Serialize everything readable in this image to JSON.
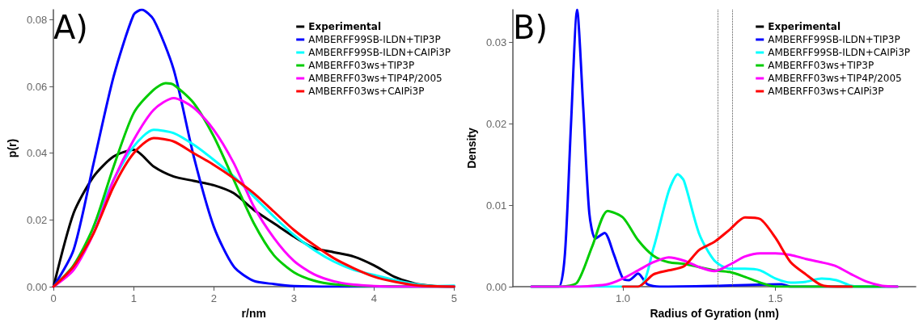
{
  "chart_data": [
    {
      "type": "line",
      "xlabel": "r/nm",
      "ylabel": "p(r)",
      "annotations": [
        "A)"
      ],
      "legend": "top right",
      "grid": false,
      "marker": "none",
      "line_style": "solid",
      "x": [
        0,
        0.25,
        0.5,
        0.75,
        1.0,
        1.25,
        1.5,
        1.75,
        2.0,
        2.25,
        2.5,
        2.75,
        3.0,
        3.25,
        3.5,
        3.75,
        4.0,
        4.25,
        4.5,
        4.75,
        5.0
      ],
      "xlim": [
        0,
        5
      ],
      "xticks": [
        0,
        1,
        2,
        3,
        4,
        5
      ],
      "ylim": [
        0,
        0.083
      ],
      "yticks": [
        {
          "value": 0,
          "label": "0.00"
        },
        {
          "value": 0.02,
          "label": "0.02"
        },
        {
          "value": 0.04,
          "label": "0.04"
        },
        {
          "value": 0.06,
          "label": "0.06"
        },
        {
          "value": 0.08,
          "label": "0.08"
        }
      ],
      "series": [
        {
          "name": "Experimental",
          "color": "#000000",
          "values": [
            0,
            0.022,
            0.033,
            0.039,
            0.041,
            0.036,
            0.033,
            0.0317,
            0.0304,
            0.028,
            0.023,
            0.019,
            0.015,
            0.0116,
            0.0103,
            0.009,
            0.0064,
            0.003,
            0.001,
            0.0002,
            0
          ]
        },
        {
          "name": "AMBERFF99SB-ILDN+TIP3P",
          "color": "#0000ff",
          "x": [
            0,
            0.25,
            0.5,
            0.75,
            1.0,
            1.1,
            1.25,
            1.5,
            1.75,
            2.0,
            2.25,
            2.5,
            2.75,
            3.0,
            3.5,
            4.0,
            5.0
          ],
          "values": [
            0,
            0.011,
            0.037,
            0.063,
            0.0815,
            0.083,
            0.08,
            0.065,
            0.039,
            0.018,
            0.006,
            0.0017,
            0.0008,
            0.0002,
            0,
            0,
            0
          ]
        },
        {
          "name": "AMBERFF99SB-ILDN+CAIPi3P",
          "color": "#00ffff",
          "values": [
            null,
            null,
            0.018,
            0.032,
            0.042,
            0.047,
            0.046,
            0.0425,
            0.038,
            0.033,
            0.027,
            0.021,
            0.0155,
            0.011,
            0.0075,
            0.005,
            0.0035,
            0.002,
            0.0008,
            0.0002,
            0.0003
          ]
        },
        {
          "name": "AMBERFF03ws+TIP3P",
          "color": "#00cc00",
          "x": [
            0,
            0.25,
            0.5,
            0.75,
            1.0,
            1.25,
            1.4,
            1.5,
            1.75,
            2.0,
            2.25,
            2.5,
            2.75,
            3.0,
            3.25,
            3.5,
            4.0,
            5.0
          ],
          "values": [
            0,
            0.0064,
            0.018,
            0.036,
            0.052,
            0.059,
            0.061,
            0.0605,
            0.055,
            0.045,
            0.032,
            0.019,
            0.0094,
            0.0043,
            0.0018,
            0.0007,
            0.0001,
            0
          ]
        },
        {
          "name": "AMBERFF03ws+TIP4P/2005",
          "color": "#ff00ff",
          "values": [
            0,
            0.005,
            0.016,
            0.032,
            0.044,
            0.053,
            0.0565,
            0.0536,
            0.047,
            0.037,
            0.024,
            0.0146,
            0.0077,
            0.0037,
            0.0016,
            0.0006,
            0.0002,
            0,
            0,
            0,
            0
          ]
        },
        {
          "name": "AMBERFF03ws+CAIPi3P",
          "color": "#ff0000",
          "values": [
            0,
            0.006,
            0.016,
            0.03,
            0.04,
            0.0445,
            0.0435,
            0.04,
            0.0365,
            0.0325,
            0.028,
            0.0225,
            0.017,
            0.0125,
            0.0085,
            0.0055,
            0.003,
            0.0015,
            0.0005,
            0.0001,
            0
          ]
        }
      ]
    },
    {
      "type": "line",
      "xlabel": "Radius of Gyration (nm)",
      "ylabel": "Density",
      "annotations": [
        "B)"
      ],
      "legend": "top right",
      "grid": false,
      "marker": "none",
      "line_style": "solid",
      "x": [
        0.7,
        0.75,
        0.8,
        0.85,
        0.9,
        0.95,
        1.0,
        1.05,
        1.1,
        1.15,
        1.2,
        1.25,
        1.3,
        1.35,
        1.4,
        1.45,
        1.5,
        1.55,
        1.6,
        1.65,
        1.7,
        1.75,
        1.8,
        1.85,
        1.9
      ],
      "xlim": [
        0.64,
        1.96
      ],
      "xticks": [
        {
          "value": 1,
          "label": "1.0"
        },
        {
          "value": 1.5,
          "label": "1.5"
        }
      ],
      "ylim": [
        0,
        0.034
      ],
      "yticks": [
        {
          "value": 0,
          "label": "0.00"
        },
        {
          "value": 0.01,
          "label": "0.01"
        },
        {
          "value": 0.02,
          "label": "0.02"
        },
        {
          "value": 0.03,
          "label": "0.03"
        }
      ],
      "ref_lines": [
        {
          "axis": "x",
          "value": 1.31,
          "color": "#555555",
          "line_style": "dotted"
        },
        {
          "axis": "x",
          "value": 1.36,
          "color": "#555555",
          "line_style": "dotted"
        }
      ],
      "series": [
        {
          "name": "Experimental",
          "color": "#000000",
          "values": [
            null,
            null,
            null,
            null,
            null,
            null,
            null,
            null,
            null,
            null,
            null,
            null,
            null,
            null,
            null,
            null,
            null,
            null,
            null,
            null,
            null,
            null,
            null,
            null,
            null
          ]
        },
        {
          "name": "AMBERFF99SB-ILDN+TIP3P",
          "color": "#0000ff",
          "x": [
            0.7,
            0.75,
            0.79,
            0.81,
            0.83,
            0.85,
            0.87,
            0.89,
            0.91,
            0.94,
            0.97,
            1.0,
            1.02,
            1.05,
            1.08,
            1.12,
            1.3,
            1.52,
            1.55,
            1.9
          ],
          "values": [
            0,
            0,
            0,
            0.004,
            0.02,
            0.034,
            0.022,
            0.009,
            0.0059,
            0.0066,
            0.004,
            0.001,
            0.0008,
            0.0016,
            0.0003,
            0,
            0.0001,
            0.0003,
            0,
            0
          ]
        },
        {
          "name": "AMBERFF99SB-ILDN+CAIPi3P",
          "color": "#00ffff",
          "x": [
            0.7,
            1.05,
            1.1,
            1.15,
            1.18,
            1.2,
            1.25,
            1.3,
            1.35,
            1.4,
            1.45,
            1.5,
            1.55,
            1.6,
            1.65,
            1.7,
            1.75,
            1.8,
            1.9
          ],
          "values": [
            0,
            0,
            0.0047,
            0.0117,
            0.0138,
            0.013,
            0.0065,
            0.0032,
            0.0022,
            0.0022,
            0.002,
            0.001,
            0.0005,
            0.0006,
            0.001,
            0.0008,
            0.0001,
            0,
            0
          ]
        },
        {
          "name": "AMBERFF03ws+TIP3P",
          "color": "#00cc00",
          "values": [
            0,
            0,
            0,
            0.0005,
            0.005,
            0.0093,
            0.0085,
            0.0057,
            0.0038,
            0.003,
            0.0028,
            0.0024,
            0.002,
            0.0018,
            0.0012,
            0.0005,
            0,
            0,
            0,
            0,
            0,
            0,
            0,
            0,
            0
          ]
        },
        {
          "name": "AMBERFF03ws+TIP4P/2005",
          "color": "#ff00ff",
          "values": [
            0,
            0,
            0,
            0,
            0.0001,
            0.0003,
            0.001,
            0.002,
            0.003,
            0.0036,
            0.0032,
            0.0024,
            0.0019,
            0.0027,
            0.0037,
            0.0041,
            0.0041,
            0.0039,
            0.0034,
            0.003,
            0.0025,
            0.0015,
            0.0006,
            0.0001,
            0
          ]
        },
        {
          "name": "AMBERFF03ws+CAIPi3P",
          "color": "#ff0000",
          "values": [
            null,
            null,
            null,
            null,
            null,
            null,
            0,
            0,
            0.0015,
            0.002,
            0.0025,
            0.0045,
            0.0055,
            0.007,
            0.0085,
            0.0083,
            0.006,
            0.003,
            0.0015,
            0.0002,
            0,
            0,
            null,
            null,
            null
          ]
        }
      ]
    }
  ]
}
